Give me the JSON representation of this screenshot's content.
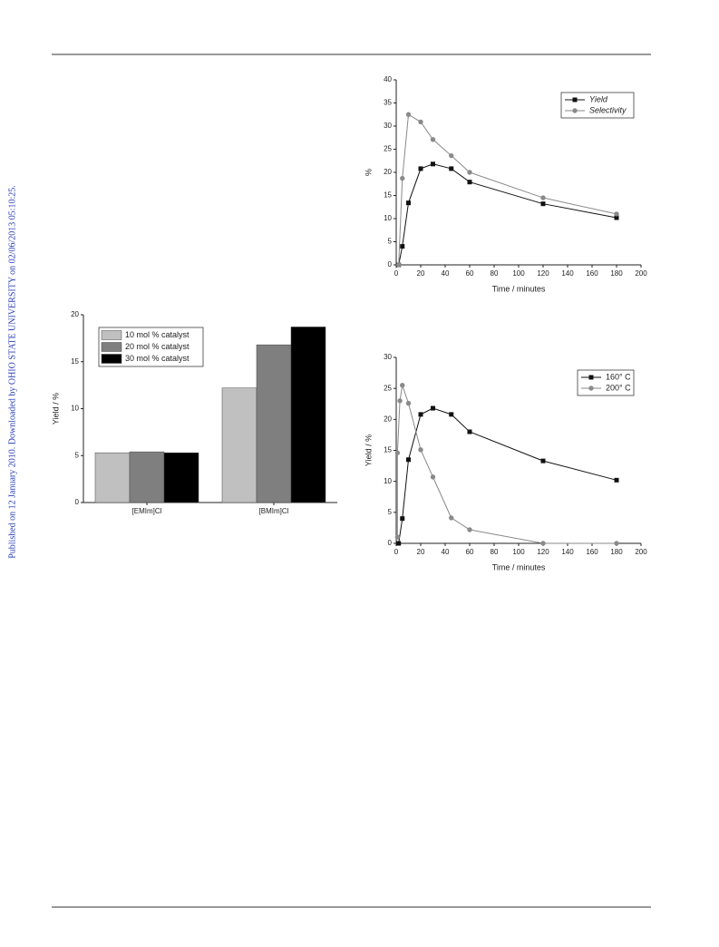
{
  "side_note": "Published on 12 January 2010. Downloaded by OHIO STATE UNIVERSITY on 02/06/2013 05:10:25.",
  "chart_data": [
    {
      "type": "line",
      "x_label": "Time / minutes",
      "y_label": "%",
      "xlim": [
        0,
        200
      ],
      "xticks": [
        0,
        20,
        40,
        60,
        80,
        100,
        120,
        140,
        160,
        180,
        200
      ],
      "ylim": [
        0,
        40
      ],
      "yticks": [
        0,
        5,
        10,
        15,
        20,
        25,
        30,
        35,
        40
      ],
      "legend": "upper right",
      "series": [
        {
          "name": "Yield",
          "color": "#111111",
          "marker": "square",
          "x": [
            2,
            5,
            10,
            20,
            30,
            45,
            60,
            120,
            180
          ],
          "values": [
            0,
            4,
            13.4,
            20.8,
            21.8,
            20.8,
            17.9,
            13.2,
            10.2
          ]
        },
        {
          "name": "Selectivity",
          "color": "#8a8a8a",
          "marker": "circle",
          "x": [
            2,
            5,
            10,
            20,
            30,
            45,
            60,
            120,
            180
          ],
          "values": [
            0,
            18.7,
            32.5,
            30.9,
            27.1,
            23.6,
            20,
            14.5,
            11
          ]
        }
      ]
    },
    {
      "type": "bar",
      "y_label": "Yield / %",
      "categories": [
        "[EMIm]Cl",
        "[BMIm]Cl"
      ],
      "ylim": [
        0,
        20
      ],
      "yticks": [
        0,
        5,
        10,
        15,
        20
      ],
      "legend": "upper left",
      "series": [
        {
          "name": "10 mol % catalyst",
          "color": "#c0c0c0",
          "values": [
            5.3,
            12.2
          ]
        },
        {
          "name": "20 mol % catalyst",
          "color": "#7f7f7f",
          "values": [
            5.4,
            16.8
          ]
        },
        {
          "name": "30 mol % catalyst",
          "color": "#000000",
          "values": [
            5.3,
            18.7
          ]
        }
      ]
    },
    {
      "type": "line",
      "x_label": "Time / minutes",
      "y_label": "Yield / %",
      "xlim": [
        0,
        200
      ],
      "xticks": [
        0,
        20,
        40,
        60,
        80,
        100,
        120,
        140,
        160,
        180,
        200
      ],
      "ylim": [
        0,
        30
      ],
      "yticks": [
        0,
        5,
        10,
        15,
        20,
        25,
        30
      ],
      "legend": "upper right",
      "series": [
        {
          "name": "160° C",
          "color": "#111111",
          "marker": "square",
          "x": [
            2,
            5,
            10,
            20,
            30,
            45,
            60,
            120,
            180
          ],
          "values": [
            0,
            4,
            13.5,
            20.8,
            21.8,
            20.8,
            18,
            13.3,
            10.2
          ]
        },
        {
          "name": "200° C",
          "color": "#8a8a8a",
          "marker": "circle",
          "x": [
            1,
            1,
            3,
            5,
            10,
            20,
            30,
            45,
            60,
            120,
            180
          ],
          "values": [
            1,
            14.6,
            23,
            25.5,
            22.6,
            15.1,
            10.7,
            4.1,
            2.2,
            0,
            0
          ]
        }
      ]
    }
  ]
}
